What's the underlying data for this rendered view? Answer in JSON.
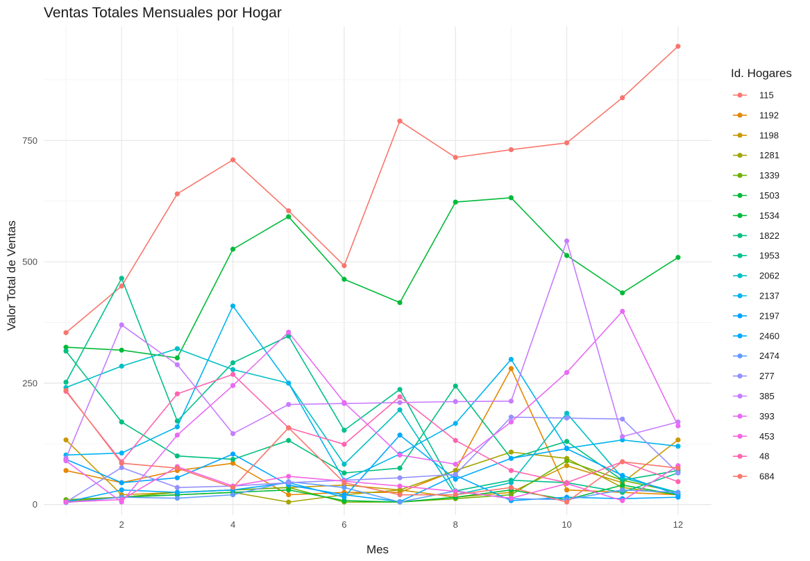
{
  "chart_data": {
    "type": "line",
    "title": "Ventas Totales Mensuales por Hogar",
    "xlabel": "Mes",
    "ylabel": "Valor Total de Ventas",
    "x": [
      1,
      2,
      3,
      4,
      5,
      6,
      7,
      8,
      9,
      10,
      11,
      12
    ],
    "xlim": [
      0.6,
      12.6
    ],
    "ylim": [
      -22,
      985
    ],
    "x_ticks": [
      2,
      4,
      6,
      8,
      10,
      12
    ],
    "y_ticks": [
      0,
      250,
      500,
      750
    ],
    "grid": true,
    "legend": {
      "title": "Id. Hogares",
      "position": "right"
    },
    "series": [
      {
        "name": "115",
        "color": "#F8766D",
        "values": [
          354,
          450,
          640,
          710,
          605,
          492,
          790,
          715,
          731,
          745,
          838,
          944
        ]
      },
      {
        "name": "1192",
        "color": "#E58700",
        "values": [
          70,
          45,
          70,
          85,
          20,
          25,
          25,
          70,
          280,
          30,
          25,
          20
        ]
      },
      {
        "name": "1198",
        "color": "#C99800",
        "values": [
          133,
          20,
          25,
          30,
          35,
          40,
          30,
          15,
          25,
          80,
          45,
          133
        ]
      },
      {
        "name": "1281",
        "color": "#A3A500",
        "values": [
          8,
          15,
          20,
          25,
          5,
          20,
          30,
          70,
          108,
          95,
          35,
          20
        ]
      },
      {
        "name": "1339",
        "color": "#6BB100",
        "values": [
          10,
          15,
          25,
          30,
          35,
          5,
          5,
          12,
          20,
          90,
          50,
          25
        ]
      },
      {
        "name": "1503",
        "color": "#00BA38",
        "values": [
          5,
          15,
          20,
          25,
          30,
          8,
          5,
          15,
          30,
          10,
          40,
          20
        ]
      },
      {
        "name": "1534",
        "color": "#00BA38",
        "values": [
          324,
          318,
          302,
          526,
          593,
          464,
          416,
          623,
          632,
          513,
          436,
          509
        ]
      },
      {
        "name": "1822",
        "color": "#00BF7D",
        "values": [
          316,
          170,
          100,
          93,
          132,
          65,
          75,
          244,
          95,
          130,
          50,
          70
        ]
      },
      {
        "name": "1953",
        "color": "#00C08B",
        "values": [
          252,
          466,
          172,
          292,
          347,
          153,
          237,
          28,
          50,
          45,
          25,
          65
        ]
      },
      {
        "name": "2062",
        "color": "#00BFC4",
        "values": [
          241,
          285,
          321,
          278,
          250,
          83,
          195,
          20,
          45,
          188,
          55,
          25
        ]
      },
      {
        "name": "2137",
        "color": "#00B4EF",
        "values": [
          102,
          106,
          160,
          409,
          250,
          50,
          104,
          167,
          299,
          116,
          133,
          120
        ]
      },
      {
        "name": "2197",
        "color": "#00A5FF",
        "values": [
          93,
          45,
          55,
          104,
          40,
          20,
          6,
          60,
          8,
          15,
          12,
          15
        ]
      },
      {
        "name": "2460",
        "color": "#00A9FF",
        "values": [
          5,
          30,
          25,
          30,
          45,
          15,
          143,
          52,
          95,
          115,
          60,
          20
        ]
      },
      {
        "name": "2474",
        "color": "#619CFF",
        "values": [
          4,
          15,
          13,
          20,
          47,
          35,
          5,
          28,
          12,
          10,
          30,
          25
        ]
      },
      {
        "name": "277",
        "color": "#9590FF",
        "values": [
          5,
          76,
          35,
          38,
          45,
          50,
          55,
          62,
          180,
          178,
          176,
          65
        ]
      },
      {
        "name": "385",
        "color": "#C77CFF",
        "values": [
          95,
          370,
          288,
          146,
          206,
          208,
          210,
          212,
          213,
          543,
          140,
          170
        ]
      },
      {
        "name": "393",
        "color": "#E76BF3",
        "values": [
          90,
          5,
          143,
          245,
          355,
          210,
          102,
          83,
          170,
          272,
          398,
          162
        ]
      },
      {
        "name": "453",
        "color": "#F564E3",
        "values": [
          5,
          10,
          78,
          38,
          58,
          48,
          38,
          27,
          13,
          43,
          8,
          80
        ]
      },
      {
        "name": "48",
        "color": "#FF64B0",
        "values": [
          233,
          88,
          228,
          268,
          158,
          124,
          222,
          132,
          70,
          45,
          88,
          47
        ]
      },
      {
        "name": "684",
        "color": "#F8766D",
        "values": [
          235,
          85,
          75,
          35,
          158,
          45,
          20,
          20,
          35,
          5,
          88,
          75
        ]
      }
    ]
  }
}
